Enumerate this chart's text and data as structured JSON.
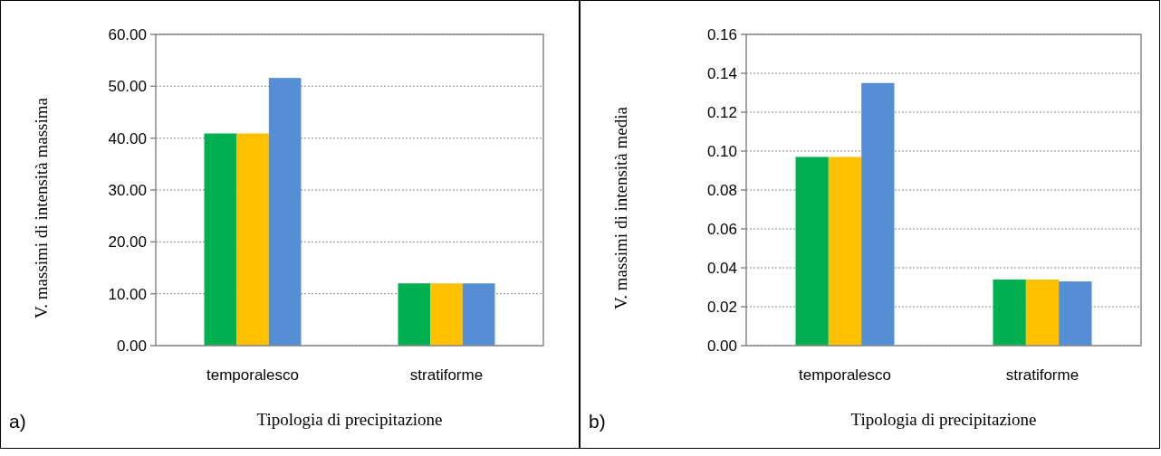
{
  "chart_data": [
    {
      "type": "bar",
      "xlabel": "Tipologia di precipitazione",
      "ylabel": "V. massimi di intensità massima",
      "annotations": [
        "a)"
      ],
      "categories": [
        "temporalesco",
        "stratiforme"
      ],
      "series": [
        {
          "color": "#00b050",
          "values": [
            40.9,
            12.0
          ]
        },
        {
          "color": "#ffc000",
          "values": [
            40.9,
            12.0
          ]
        },
        {
          "color": "#558ed5",
          "values": [
            51.6,
            12.0
          ]
        }
      ],
      "ylim": [
        0,
        60
      ],
      "yticks": [
        {
          "value": 0,
          "label": "0.00"
        },
        {
          "value": 10,
          "label": "10.00"
        },
        {
          "value": 20,
          "label": "20.00"
        },
        {
          "value": 30,
          "label": "30.00"
        },
        {
          "value": 40,
          "label": "40.00"
        },
        {
          "value": 50,
          "label": "50.00"
        },
        {
          "value": 60,
          "label": "60.00"
        }
      ],
      "grid": "y"
    },
    {
      "type": "bar",
      "xlabel": "Tipologia di precipitazione",
      "ylabel": "V. massimi di intensità media",
      "annotations": [
        "b)"
      ],
      "categories": [
        "temporalesco",
        "stratiforme"
      ],
      "series": [
        {
          "color": "#00b050",
          "values": [
            0.097,
            0.034
          ]
        },
        {
          "color": "#ffc000",
          "values": [
            0.097,
            0.034
          ]
        },
        {
          "color": "#558ed5",
          "values": [
            0.135,
            0.033
          ]
        }
      ],
      "ylim": [
        0,
        0.16
      ],
      "yticks": [
        {
          "value": 0,
          "label": "0.00"
        },
        {
          "value": 0.02,
          "label": "0.02"
        },
        {
          "value": 0.04,
          "label": "0.04"
        },
        {
          "value": 0.06,
          "label": "0.06"
        },
        {
          "value": 0.08,
          "label": "0.08"
        },
        {
          "value": 0.1,
          "label": "0.10"
        },
        {
          "value": 0.12,
          "label": "0.12"
        },
        {
          "value": 0.14,
          "label": "0.14"
        },
        {
          "value": 0.16,
          "label": "0.16"
        }
      ],
      "grid": "y"
    }
  ]
}
